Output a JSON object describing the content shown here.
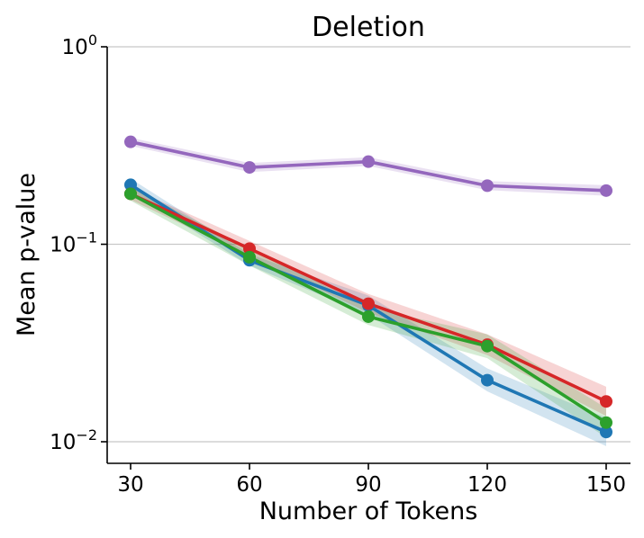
{
  "chart_data": {
    "type": "line",
    "title": "Deletion",
    "xlabel": "Number of Tokens",
    "ylabel": "Mean p-value",
    "yscale": "log",
    "ylim": [
      0.008,
      1
    ],
    "grid": "horizontal major gridlines",
    "x": [
      30,
      60,
      90,
      120,
      150
    ],
    "x_ticks": [
      {
        "value": 30,
        "label": "30"
      },
      {
        "value": 60,
        "label": "60"
      },
      {
        "value": 90,
        "label": "90"
      },
      {
        "value": 120,
        "label": "120"
      },
      {
        "value": 150,
        "label": "150"
      }
    ],
    "y_ticks": [
      {
        "value": 1,
        "base": "10",
        "exp": "0"
      },
      {
        "value": 0.1,
        "base": "10",
        "exp": "−1"
      },
      {
        "value": 0.01,
        "base": "10",
        "exp": "−2"
      }
    ],
    "series": [
      {
        "name": "purple",
        "color": "#9467bd",
        "values": [
          0.33,
          0.245,
          0.262,
          0.198,
          0.187
        ],
        "lower": [
          0.315,
          0.232,
          0.249,
          0.188,
          0.176
        ],
        "upper": [
          0.346,
          0.258,
          0.276,
          0.209,
          0.199
        ]
      },
      {
        "name": "blue",
        "color": "#1f77b4",
        "values": [
          0.2,
          0.083,
          0.049,
          0.0205,
          0.0112
        ],
        "lower": [
          0.185,
          0.078,
          0.044,
          0.018,
          0.0095
        ],
        "upper": [
          0.215,
          0.089,
          0.055,
          0.0235,
          0.0132
        ]
      },
      {
        "name": "red",
        "color": "#d62728",
        "values": [
          0.18,
          0.095,
          0.05,
          0.031,
          0.016
        ],
        "lower": [
          0.168,
          0.087,
          0.045,
          0.0275,
          0.0135
        ],
        "upper": [
          0.193,
          0.104,
          0.056,
          0.035,
          0.019
        ]
      },
      {
        "name": "green",
        "color": "#2ca02c",
        "values": [
          0.18,
          0.086,
          0.043,
          0.0305,
          0.0125
        ],
        "lower": [
          0.166,
          0.078,
          0.039,
          0.0265,
          0.0105
        ],
        "upper": [
          0.196,
          0.095,
          0.048,
          0.035,
          0.0148
        ]
      }
    ]
  }
}
